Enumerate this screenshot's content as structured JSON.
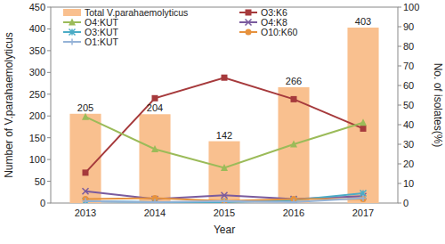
{
  "chart_data": {
    "type": "bar",
    "x_label": "Year",
    "y_label": "Number of V.parahaemolyticus",
    "y2_label": "No. of isolates(%)",
    "categories": [
      "2013",
      "2014",
      "2015",
      "2016",
      "2017"
    ],
    "ylim": [
      0,
      450
    ],
    "yticks": [
      0,
      50,
      100,
      150,
      200,
      250,
      300,
      350,
      400,
      450
    ],
    "y2lim": [
      0,
      100
    ],
    "y2ticks": [
      0,
      10,
      20,
      30,
      40,
      50,
      60,
      70,
      80,
      90,
      100
    ],
    "legend": "upper left",
    "data_labels": true,
    "series": [
      {
        "name": "Total V.parahaemolyticus",
        "type": "bar",
        "color": "#f9c08f",
        "values": [
          205,
          204,
          142,
          266,
          403
        ]
      },
      {
        "name": "O3:K6",
        "type": "line",
        "axis": "y2",
        "color": "#a63a3c",
        "marker": "square",
        "values": [
          15.5,
          53.5,
          64,
          53,
          38
        ]
      },
      {
        "name": "O4:KUT",
        "type": "line",
        "axis": "y2",
        "color": "#9bbb59",
        "marker": "triangle",
        "values": [
          44,
          27.5,
          18,
          30,
          41
        ]
      },
      {
        "name": "O4:K8",
        "type": "line",
        "axis": "y2",
        "color": "#7a5b9e",
        "marker": "x",
        "values": [
          6,
          2,
          4,
          2,
          3.5
        ]
      },
      {
        "name": "O3:KUT",
        "type": "line",
        "axis": "y2",
        "color": "#4bacc6",
        "marker": "star",
        "values": [
          1,
          0.5,
          0.5,
          1.5,
          5
        ]
      },
      {
        "name": "O10:K60",
        "type": "line",
        "axis": "y2",
        "color": "#e6923e",
        "marker": "circle",
        "values": [
          2,
          2.5,
          1,
          2,
          2
        ]
      },
      {
        "name": "O1:KUT",
        "type": "line",
        "axis": "y2",
        "color": "#95b3d7",
        "marker": "plus",
        "values": [
          1,
          0.5,
          1,
          0.5,
          2.5
        ]
      }
    ]
  }
}
